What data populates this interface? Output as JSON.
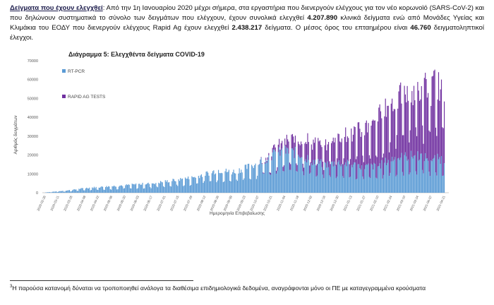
{
  "text": {
    "heading": "Δείγματα που έχουν ελεγχθεί",
    "p1": ": Από την 1η Ιανουαρίου 2020 μέχρι σήμερα, στα εργαστήρια που διενεργούν ελέγχους για τον νέο κορωνοϊό (SARS-CoV-2) και που δηλώνουν συστηματικά το σύνολο των δειγμάτων που ελέγχουν, έχουν συνολικά ελεγχθεί ",
    "pcr_total": "4.207.890",
    "p2": " κλινικά δείγματα ενώ από Μονάδες Υγείας και Κλιμάκια του ΕΟΔΥ που διενεργούν ελέγχους Rapid Ag έχουν ελεγχθεί ",
    "rapid_total": "2.438.217",
    "p3": " δείγματα. Ο μέσος όρος του επταημέρου είναι ",
    "avg_7day": "46.760",
    "p4": " δειγματοληπτικοί έλεγχοι."
  },
  "footnote": {
    "marker": "3",
    "text": "Η παρούσα κατανομή δύναται να τροποποιηθεί ανάλογα τα διαθέσιμα επιδημιολογικά δεδομένα, αναγράφονται μόνο οι ΠΕ με καταγεγραμμένα κρούσματα"
  },
  "chart_data": {
    "type": "bar",
    "stacked": true,
    "title": "Διάγραμμα 5: Ελεγχθέντα δείγματα COVID-19",
    "xlabel": "Ημερομηνία Επιβεβαίωσης",
    "ylabel": "Αριθμός δειγμάτων",
    "ylim": [
      0,
      70000
    ],
    "yticks": [
      "0",
      "10000",
      "20000",
      "30000",
      "40000",
      "50000",
      "60000",
      "70000"
    ],
    "grid": false,
    "legend_position": "top-left inside",
    "x_tick_labels": [
      "2020-02-26",
      "2020-03-11",
      "2020-03-25",
      "2020-04-08",
      "2020-04-22",
      "2020-05-06",
      "2020-05-20",
      "2020-06-03",
      "2020-06-17",
      "2020-07-01",
      "2020-07-15",
      "2020-07-29",
      "2020-08-12",
      "2020-08-26",
      "2020-09-09",
      "2020-09-23",
      "2020-10-07",
      "2020-10-21",
      "2020-11-04",
      "2020-11-18",
      "2020-12-02",
      "2020-12-16",
      "2020-12-30",
      "2021-01-13",
      "2021-01-27",
      "2021-02-10",
      "2021-02-24",
      "2021-03-10",
      "2021-03-24",
      "2021-04-07",
      "2021-04-21"
    ],
    "series": [
      {
        "name": "RT-PCR",
        "color": "#5b9bd5"
      },
      {
        "name": "RAPID AG TESTS",
        "color": "#7030a0"
      }
    ],
    "profile_by_tick": {
      "pcr": [
        200,
        800,
        1500,
        2500,
        3000,
        3500,
        4000,
        4500,
        5000,
        6000,
        7000,
        8000,
        10000,
        12000,
        11000,
        13000,
        16000,
        20000,
        22000,
        21000,
        17000,
        15000,
        16000,
        15000,
        14000,
        14000,
        18000,
        19000,
        20000,
        18000,
        18000
      ],
      "rapid": [
        0,
        0,
        0,
        0,
        0,
        0,
        0,
        0,
        0,
        0,
        0,
        0,
        0,
        0,
        0,
        0,
        0,
        2000,
        5000,
        8000,
        10000,
        10000,
        15000,
        16000,
        20000,
        25000,
        30000,
        33000,
        35000,
        38000,
        38000
      ]
    }
  }
}
